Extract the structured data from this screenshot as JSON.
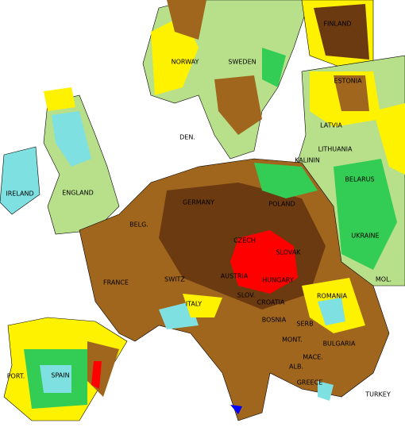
{
  "map": {
    "labels": [
      "FINLAND",
      "NORWAY",
      "SWEDEN",
      "ESTONIA",
      "DEN.",
      "LATVIA",
      "LITHUANIA",
      "KALININ",
      "BELARUS",
      "IRELAND",
      "ENGLAND",
      "GERMANY",
      "POLAND",
      "BELG.",
      "UKRAINE",
      "CZECH",
      "SLOVAK",
      "FRANCE",
      "SWITZ",
      "AUSTRIA",
      "HUNGARY",
      "MOL.",
      "ROMANIA",
      "SLOV.",
      "CROATIA",
      "ITALY",
      "BOSNIA",
      "SERB",
      "BULGARIA",
      "MONT.",
      "MACE.",
      "ALB.",
      "GREECE",
      "TURKEY",
      "PORT.",
      "SPAIN"
    ]
  }
}
